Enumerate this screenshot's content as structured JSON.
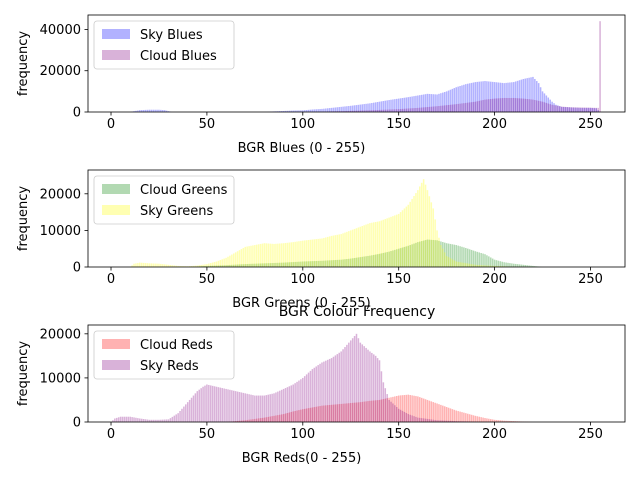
{
  "figure_title": "BGR Colour Frequency",
  "chart_data": [
    {
      "type": "bar",
      "xlabel": "BGR Blues (0 - 255)",
      "ylabel": "frequency",
      "xlim": [
        -12,
        268
      ],
      "ylim": [
        0,
        47000
      ],
      "xticks": [
        0,
        50,
        100,
        150,
        200,
        250
      ],
      "yticks": [
        0,
        20000,
        40000
      ],
      "grid": false,
      "legend_position": "top-left",
      "series": [
        {
          "name": "Sky Blues",
          "color": "#0000ff",
          "alpha": 0.3,
          "points": [
            [
              0,
              0
            ],
            [
              10,
              0
            ],
            [
              12,
              400
            ],
            [
              15,
              900
            ],
            [
              20,
              1100
            ],
            [
              25,
              1100
            ],
            [
              28,
              900
            ],
            [
              30,
              400
            ],
            [
              32,
              0
            ],
            [
              80,
              0
            ],
            [
              85,
              300
            ],
            [
              90,
              500
            ],
            [
              95,
              700
            ],
            [
              100,
              800
            ],
            [
              105,
              1200
            ],
            [
              110,
              1500
            ],
            [
              115,
              2000
            ],
            [
              120,
              2500
            ],
            [
              125,
              3000
            ],
            [
              130,
              3600
            ],
            [
              135,
              4200
            ],
            [
              140,
              5000
            ],
            [
              145,
              5800
            ],
            [
              150,
              6500
            ],
            [
              155,
              7200
            ],
            [
              160,
              8000
            ],
            [
              165,
              8800
            ],
            [
              170,
              8500
            ],
            [
              175,
              10000
            ],
            [
              180,
              12000
            ],
            [
              185,
              13500
            ],
            [
              190,
              14500
            ],
            [
              195,
              15000
            ],
            [
              200,
              14500
            ],
            [
              205,
              14000
            ],
            [
              210,
              14500
            ],
            [
              215,
              16000
            ],
            [
              220,
              17000
            ],
            [
              223,
              14000
            ],
            [
              225,
              10000
            ],
            [
              228,
              7000
            ],
            [
              230,
              5000
            ],
            [
              232,
              3500
            ],
            [
              235,
              2500
            ],
            [
              240,
              2200
            ],
            [
              245,
              2000
            ],
            [
              250,
              2000
            ],
            [
              253,
              1800
            ],
            [
              255,
              0
            ]
          ]
        },
        {
          "name": "Cloud Blues",
          "color": "#800080",
          "alpha": 0.3,
          "points": [
            [
              0,
              0
            ],
            [
              100,
              0
            ],
            [
              110,
              200
            ],
            [
              120,
              400
            ],
            [
              130,
              700
            ],
            [
              140,
              1000
            ],
            [
              150,
              1400
            ],
            [
              160,
              2000
            ],
            [
              170,
              2800
            ],
            [
              180,
              3800
            ],
            [
              190,
              5000
            ],
            [
              195,
              6000
            ],
            [
              200,
              6500
            ],
            [
              205,
              6800
            ],
            [
              210,
              6800
            ],
            [
              215,
              6500
            ],
            [
              220,
              6000
            ],
            [
              225,
              5000
            ],
            [
              230,
              3500
            ],
            [
              235,
              2600
            ],
            [
              240,
              2300
            ],
            [
              245,
              2200
            ],
            [
              250,
              2100
            ],
            [
              254,
              2000
            ],
            [
              255,
              44000
            ]
          ]
        }
      ]
    },
    {
      "type": "bar",
      "xlabel": "BGR Greens (0 - 255)",
      "ylabel": "frequency",
      "xlim": [
        -12,
        268
      ],
      "ylim": [
        0,
        26500
      ],
      "xticks": [
        0,
        50,
        100,
        150,
        200,
        250
      ],
      "yticks": [
        0,
        10000,
        20000
      ],
      "grid": false,
      "legend_position": "top-left",
      "series": [
        {
          "name": "Cloud Greens",
          "color": "#008000",
          "alpha": 0.3,
          "points": [
            [
              0,
              0
            ],
            [
              40,
              0
            ],
            [
              50,
              300
            ],
            [
              60,
              500
            ],
            [
              70,
              800
            ],
            [
              80,
              1000
            ],
            [
              90,
              1200
            ],
            [
              100,
              1500
            ],
            [
              110,
              1700
            ],
            [
              120,
              2000
            ],
            [
              125,
              2300
            ],
            [
              130,
              2700
            ],
            [
              135,
              3100
            ],
            [
              140,
              3600
            ],
            [
              145,
              4200
            ],
            [
              150,
              5000
            ],
            [
              155,
              5800
            ],
            [
              160,
              6800
            ],
            [
              165,
              7500
            ],
            [
              170,
              7300
            ],
            [
              175,
              6500
            ],
            [
              180,
              6000
            ],
            [
              185,
              5200
            ],
            [
              190,
              4300
            ],
            [
              195,
              3500
            ],
            [
              200,
              2000
            ],
            [
              205,
              1300
            ],
            [
              210,
              900
            ],
            [
              215,
              600
            ],
            [
              220,
              300
            ],
            [
              225,
              0
            ]
          ]
        },
        {
          "name": "Sky Greens",
          "color": "#ffff00",
          "alpha": 0.3,
          "points": [
            [
              0,
              0
            ],
            [
              10,
              0
            ],
            [
              12,
              900
            ],
            [
              15,
              1200
            ],
            [
              20,
              1000
            ],
            [
              25,
              900
            ],
            [
              30,
              600
            ],
            [
              35,
              300
            ],
            [
              40,
              200
            ],
            [
              45,
              400
            ],
            [
              50,
              800
            ],
            [
              55,
              1500
            ],
            [
              60,
              2500
            ],
            [
              65,
              4000
            ],
            [
              70,
              5500
            ],
            [
              75,
              6000
            ],
            [
              80,
              6500
            ],
            [
              85,
              6300
            ],
            [
              90,
              6500
            ],
            [
              95,
              6800
            ],
            [
              100,
              7200
            ],
            [
              105,
              7500
            ],
            [
              110,
              7800
            ],
            [
              115,
              8500
            ],
            [
              120,
              9000
            ],
            [
              125,
              10000
            ],
            [
              130,
              11000
            ],
            [
              135,
              12000
            ],
            [
              140,
              12500
            ],
            [
              145,
              13500
            ],
            [
              150,
              14500
            ],
            [
              155,
              17000
            ],
            [
              160,
              21000
            ],
            [
              163,
              24000
            ],
            [
              165,
              21000
            ],
            [
              168,
              16000
            ],
            [
              170,
              10000
            ],
            [
              172,
              6000
            ],
            [
              175,
              3000
            ],
            [
              180,
              1500
            ],
            [
              190,
              600
            ],
            [
              200,
              300
            ],
            [
              210,
              100
            ],
            [
              220,
              0
            ]
          ]
        }
      ]
    },
    {
      "type": "bar",
      "xlabel": "BGR Reds(0 - 255)",
      "ylabel": "frequency",
      "xlim": [
        -12,
        268
      ],
      "ylim": [
        0,
        22000
      ],
      "xticks": [
        0,
        50,
        100,
        150,
        200,
        250
      ],
      "yticks": [
        0,
        10000,
        20000
      ],
      "grid": false,
      "legend_position": "top-left",
      "series": [
        {
          "name": "Cloud Reds",
          "color": "#ff0000",
          "alpha": 0.3,
          "points": [
            [
              0,
              0
            ],
            [
              60,
              0
            ],
            [
              70,
              400
            ],
            [
              80,
              1000
            ],
            [
              90,
              1800
            ],
            [
              95,
              2400
            ],
            [
              100,
              2900
            ],
            [
              105,
              3300
            ],
            [
              110,
              3700
            ],
            [
              115,
              3900
            ],
            [
              120,
              4100
            ],
            [
              125,
              4300
            ],
            [
              130,
              4500
            ],
            [
              135,
              4800
            ],
            [
              140,
              5000
            ],
            [
              145,
              5500
            ],
            [
              150,
              6000
            ],
            [
              155,
              6200
            ],
            [
              160,
              5800
            ],
            [
              165,
              5000
            ],
            [
              170,
              4200
            ],
            [
              175,
              3400
            ],
            [
              180,
              2600
            ],
            [
              185,
              2000
            ],
            [
              190,
              1400
            ],
            [
              195,
              900
            ],
            [
              200,
              500
            ],
            [
              205,
              300
            ],
            [
              210,
              200
            ],
            [
              215,
              100
            ],
            [
              220,
              0
            ]
          ]
        },
        {
          "name": "Sky Reds",
          "color": "#800080",
          "alpha": 0.3,
          "points": [
            [
              0,
              0
            ],
            [
              2,
              800
            ],
            [
              5,
              1200
            ],
            [
              10,
              1200
            ],
            [
              15,
              800
            ],
            [
              20,
              500
            ],
            [
              25,
              500
            ],
            [
              30,
              600
            ],
            [
              35,
              2000
            ],
            [
              40,
              4500
            ],
            [
              45,
              7000
            ],
            [
              48,
              8000
            ],
            [
              50,
              8500
            ],
            [
              55,
              8000
            ],
            [
              60,
              7500
            ],
            [
              65,
              7000
            ],
            [
              70,
              6500
            ],
            [
              75,
              6000
            ],
            [
              80,
              6000
            ],
            [
              85,
              6500
            ],
            [
              90,
              7500
            ],
            [
              95,
              8500
            ],
            [
              100,
              10000
            ],
            [
              105,
              12000
            ],
            [
              110,
              13500
            ],
            [
              115,
              14500
            ],
            [
              120,
              16000
            ],
            [
              125,
              18500
            ],
            [
              128,
              20000
            ],
            [
              130,
              18000
            ],
            [
              135,
              16000
            ],
            [
              138,
              15000
            ],
            [
              140,
              14000
            ],
            [
              142,
              9000
            ],
            [
              145,
              5000
            ],
            [
              150,
              3000
            ],
            [
              155,
              1800
            ],
            [
              160,
              1000
            ],
            [
              170,
              400
            ],
            [
              180,
              200
            ],
            [
              190,
              100
            ],
            [
              200,
              0
            ]
          ]
        }
      ]
    }
  ]
}
